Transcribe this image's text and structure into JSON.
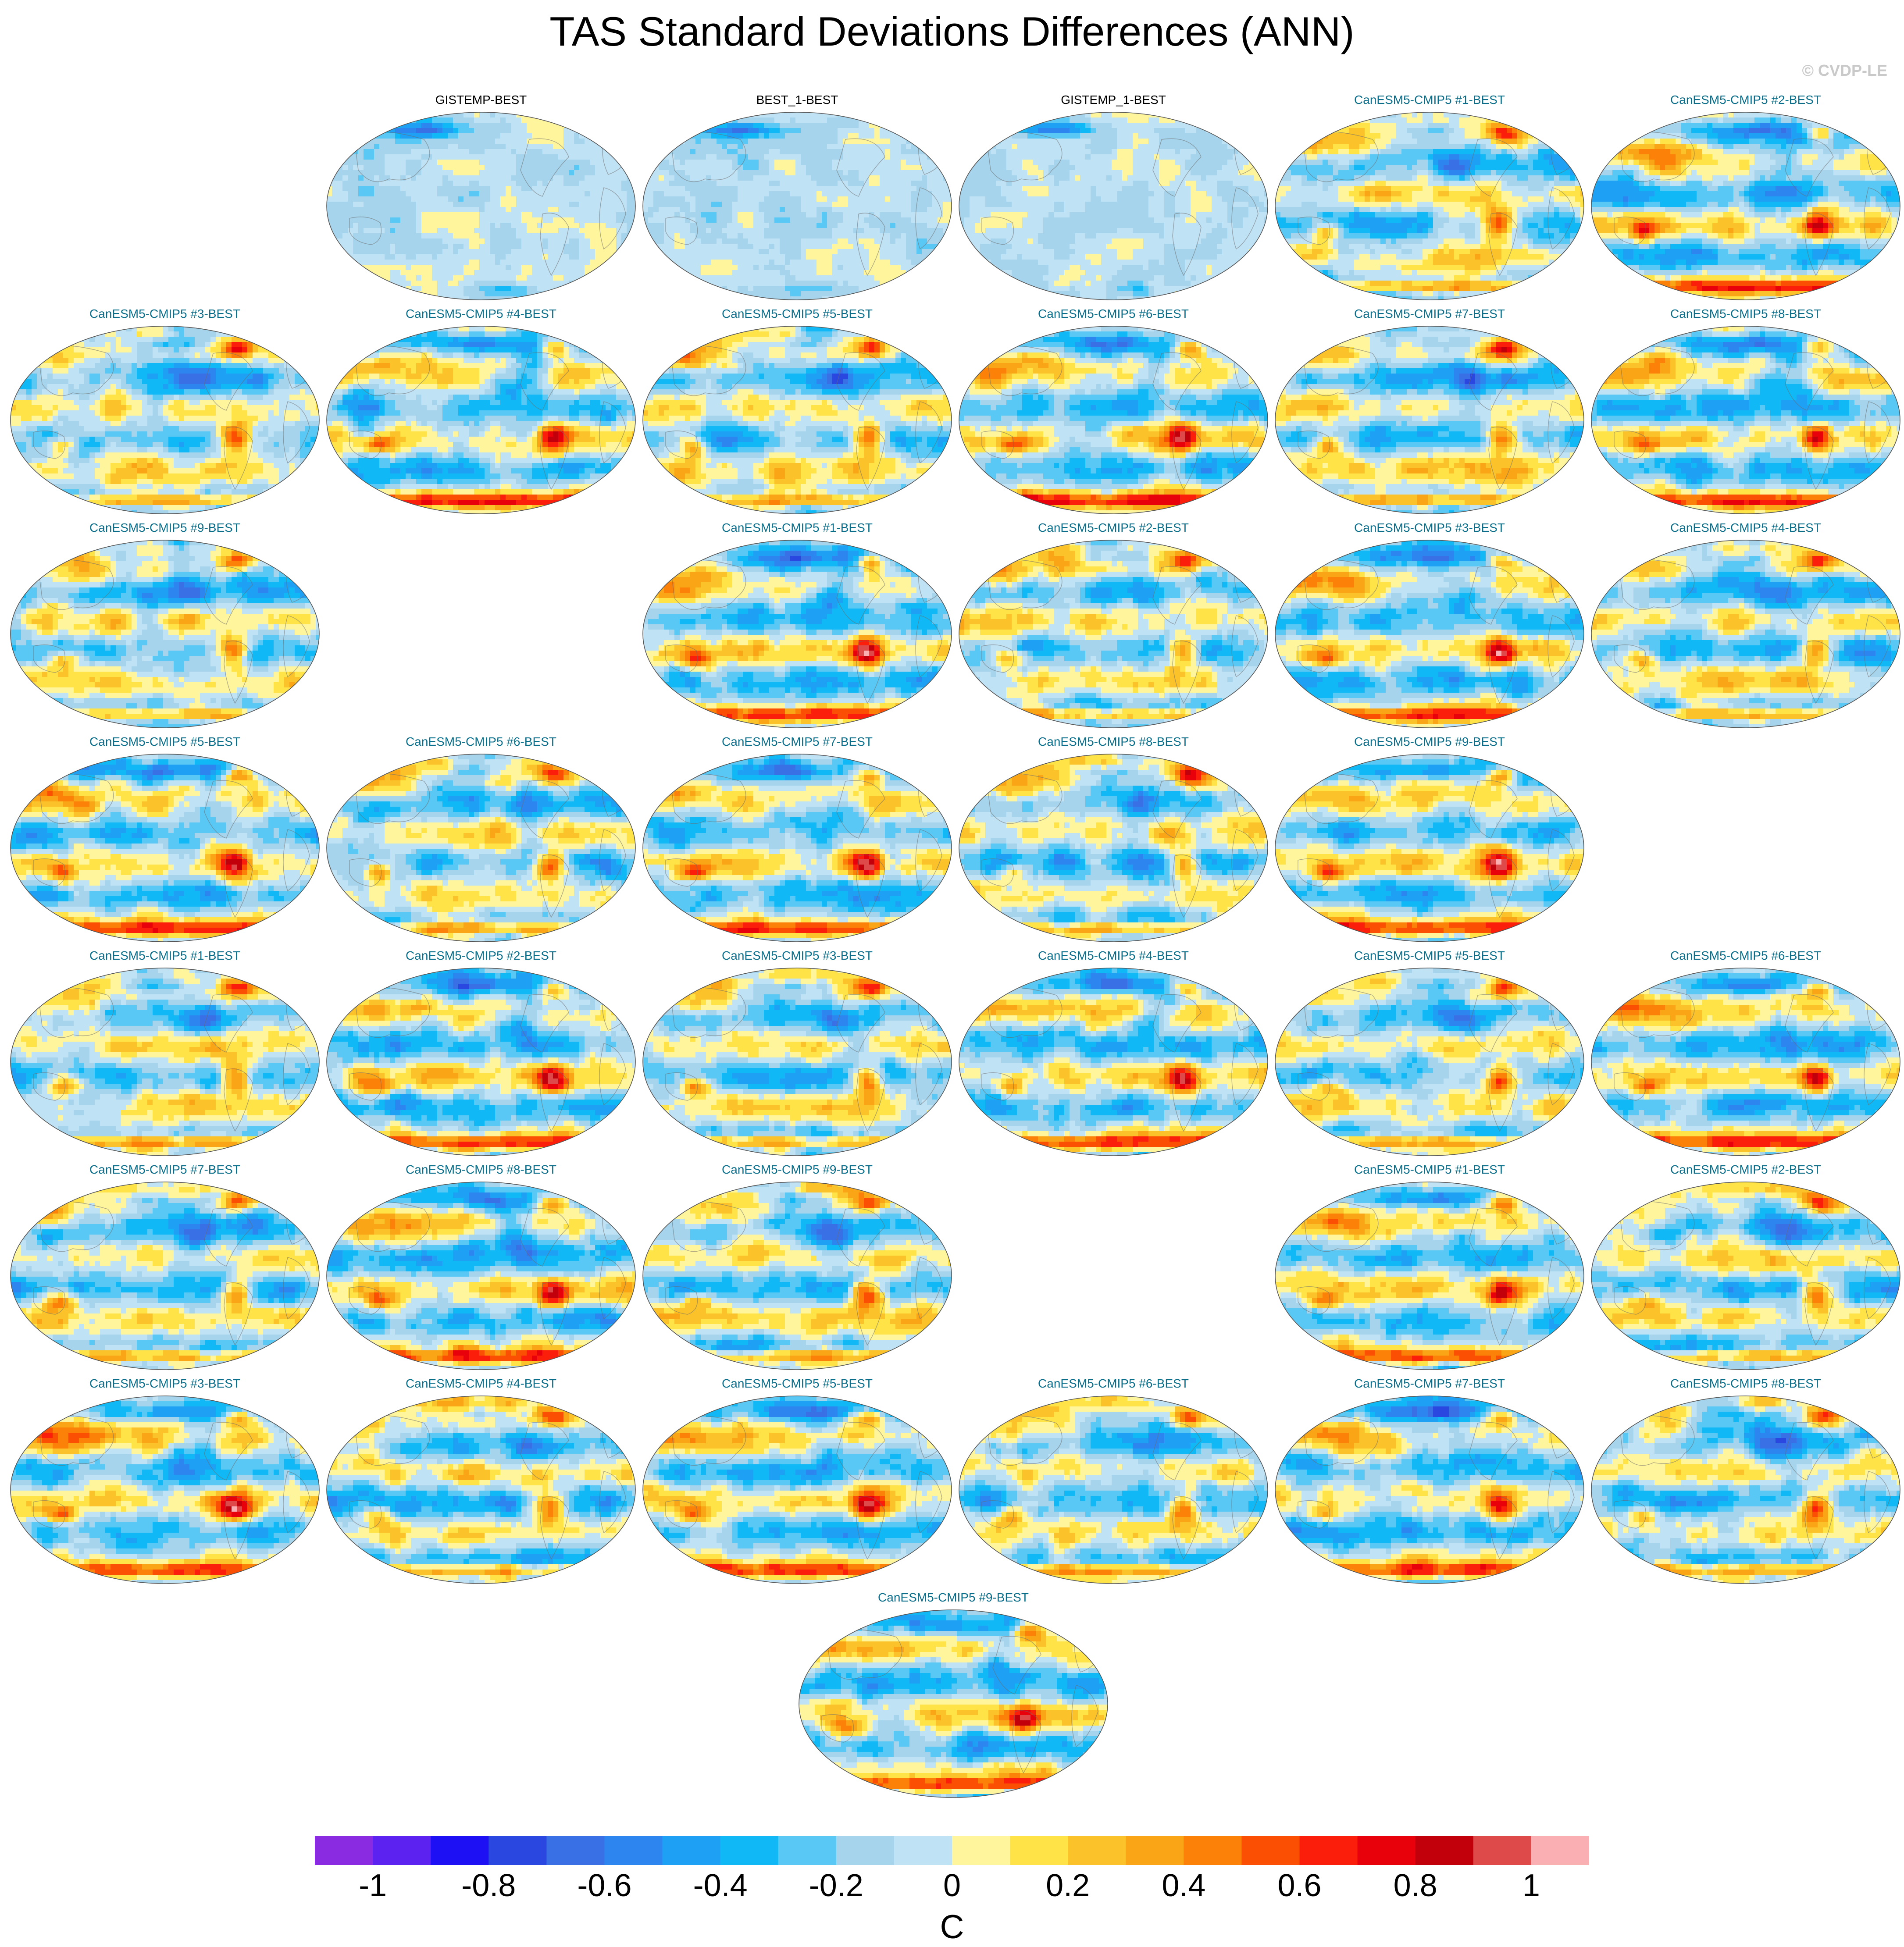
{
  "title": "TAS Standard Deviations Differences (ANN)",
  "copyright": "© CVDP-LE",
  "chart_data": {
    "type": "heatmap",
    "projection": "Robinson-style global map panels",
    "variable": "TAS",
    "season": "ANN",
    "panels": [
      {
        "label": "GISTEMP-BEST",
        "kind": "obs",
        "row": 0,
        "col": 1,
        "dominant_values": [
          -0.1,
          0.1
        ]
      },
      {
        "label": "BEST_1-BEST",
        "kind": "obs",
        "row": 0,
        "col": 2,
        "dominant_values": [
          -0.1,
          0.1
        ]
      },
      {
        "label": "GISTEMP_1-BEST",
        "kind": "obs",
        "row": 0,
        "col": 3,
        "dominant_values": [
          -0.1,
          0.1
        ]
      },
      {
        "label": "CanESM5-CMIP5 #1-BEST",
        "kind": "model",
        "row": 0,
        "col": 4
      },
      {
        "label": "CanESM5-CMIP5 #2-BEST",
        "kind": "model",
        "row": 0,
        "col": 5
      },
      {
        "label": "CanESM5-CMIP5 #3-BEST",
        "kind": "model",
        "row": 1,
        "col": 0
      },
      {
        "label": "CanESM5-CMIP5 #4-BEST",
        "kind": "model",
        "row": 1,
        "col": 1
      },
      {
        "label": "CanESM5-CMIP5 #5-BEST",
        "kind": "model",
        "row": 1,
        "col": 2
      },
      {
        "label": "CanESM5-CMIP5 #6-BEST",
        "kind": "model",
        "row": 1,
        "col": 3
      },
      {
        "label": "CanESM5-CMIP5 #7-BEST",
        "kind": "model",
        "row": 1,
        "col": 4
      },
      {
        "label": "CanESM5-CMIP5 #8-BEST",
        "kind": "model",
        "row": 1,
        "col": 5
      },
      {
        "label": "CanESM5-CMIP5 #9-BEST",
        "kind": "model",
        "row": 2,
        "col": 0
      },
      {
        "label": "CanESM5-CMIP5 #1-BEST",
        "kind": "model",
        "row": 2,
        "col": 2
      },
      {
        "label": "CanESM5-CMIP5 #2-BEST",
        "kind": "model",
        "row": 2,
        "col": 3
      },
      {
        "label": "CanESM5-CMIP5 #3-BEST",
        "kind": "model",
        "row": 2,
        "col": 4
      },
      {
        "label": "CanESM5-CMIP5 #4-BEST",
        "kind": "model",
        "row": 2,
        "col": 5
      },
      {
        "label": "CanESM5-CMIP5 #5-BEST",
        "kind": "model",
        "row": 3,
        "col": 0
      },
      {
        "label": "CanESM5-CMIP5 #6-BEST",
        "kind": "model",
        "row": 3,
        "col": 1
      },
      {
        "label": "CanESM5-CMIP5 #7-BEST",
        "kind": "model",
        "row": 3,
        "col": 2
      },
      {
        "label": "CanESM5-CMIP5 #8-BEST",
        "kind": "model",
        "row": 3,
        "col": 3
      },
      {
        "label": "CanESM5-CMIP5 #9-BEST",
        "kind": "model",
        "row": 3,
        "col": 4
      },
      {
        "label": "CanESM5-CMIP5 #1-BEST",
        "kind": "model",
        "row": 4,
        "col": 0
      },
      {
        "label": "CanESM5-CMIP5 #2-BEST",
        "kind": "model",
        "row": 4,
        "col": 1
      },
      {
        "label": "CanESM5-CMIP5 #3-BEST",
        "kind": "model",
        "row": 4,
        "col": 2
      },
      {
        "label": "CanESM5-CMIP5 #4-BEST",
        "kind": "model",
        "row": 4,
        "col": 3
      },
      {
        "label": "CanESM5-CMIP5 #5-BEST",
        "kind": "model",
        "row": 4,
        "col": 4
      },
      {
        "label": "CanESM5-CMIP5 #6-BEST",
        "kind": "model",
        "row": 4,
        "col": 5
      },
      {
        "label": "CanESM5-CMIP5 #7-BEST",
        "kind": "model",
        "row": 5,
        "col": 0
      },
      {
        "label": "CanESM5-CMIP5 #8-BEST",
        "kind": "model",
        "row": 5,
        "col": 1
      },
      {
        "label": "CanESM5-CMIP5 #9-BEST",
        "kind": "model",
        "row": 5,
        "col": 2
      },
      {
        "label": "CanESM5-CMIP5 #1-BEST",
        "kind": "model",
        "row": 5,
        "col": 4
      },
      {
        "label": "CanESM5-CMIP5 #2-BEST",
        "kind": "model",
        "row": 5,
        "col": 5
      },
      {
        "label": "CanESM5-CMIP5 #3-BEST",
        "kind": "model",
        "row": 6,
        "col": 0
      },
      {
        "label": "CanESM5-CMIP5 #4-BEST",
        "kind": "model",
        "row": 6,
        "col": 1
      },
      {
        "label": "CanESM5-CMIP5 #5-BEST",
        "kind": "model",
        "row": 6,
        "col": 2
      },
      {
        "label": "CanESM5-CMIP5 #6-BEST",
        "kind": "model",
        "row": 6,
        "col": 3
      },
      {
        "label": "CanESM5-CMIP5 #7-BEST",
        "kind": "model",
        "row": 6,
        "col": 4
      },
      {
        "label": "CanESM5-CMIP5 #8-BEST",
        "kind": "model",
        "row": 6,
        "col": 5
      },
      {
        "label": "CanESM5-CMIP5 #9-BEST",
        "kind": "model",
        "row": 7,
        "col": "center"
      }
    ],
    "colorbar": {
      "unit": "C",
      "range": [
        -1.1,
        1.1
      ],
      "bins": 22,
      "tick_labels": [
        "-1",
        "-0.8",
        "-0.6",
        "-0.4",
        "-0.2",
        "0",
        "0.2",
        "0.4",
        "0.6",
        "0.8",
        "1"
      ],
      "tick_values": [
        -1,
        -0.8,
        -0.6,
        -0.4,
        -0.2,
        0,
        0.2,
        0.4,
        0.6,
        0.8,
        1
      ],
      "colors": [
        "#8a2be2",
        "#5b22f0",
        "#1d10f5",
        "#2a48e0",
        "#3a70e6",
        "#2d86f0",
        "#1ea0f5",
        "#10b9f5",
        "#5ac8f5",
        "#a5d4ec",
        "#c0e2f5",
        "#fff59d",
        "#ffe347",
        "#fcc229",
        "#f9a515",
        "#fb8109",
        "#fb4f03",
        "#fb1e0b",
        "#e8000b",
        "#c2000b",
        "#de4a4a",
        "#faafb3"
      ]
    },
    "model_pattern": {
      "note_values": "qualitative features common to model-minus-BEST panels",
      "southern_ocean_band": 0.6,
      "amazon_hotspot": 0.8,
      "australia_hotspot": 0.5,
      "tropical_ocean_background": -0.1,
      "north_atlantic": -0.3
    }
  }
}
